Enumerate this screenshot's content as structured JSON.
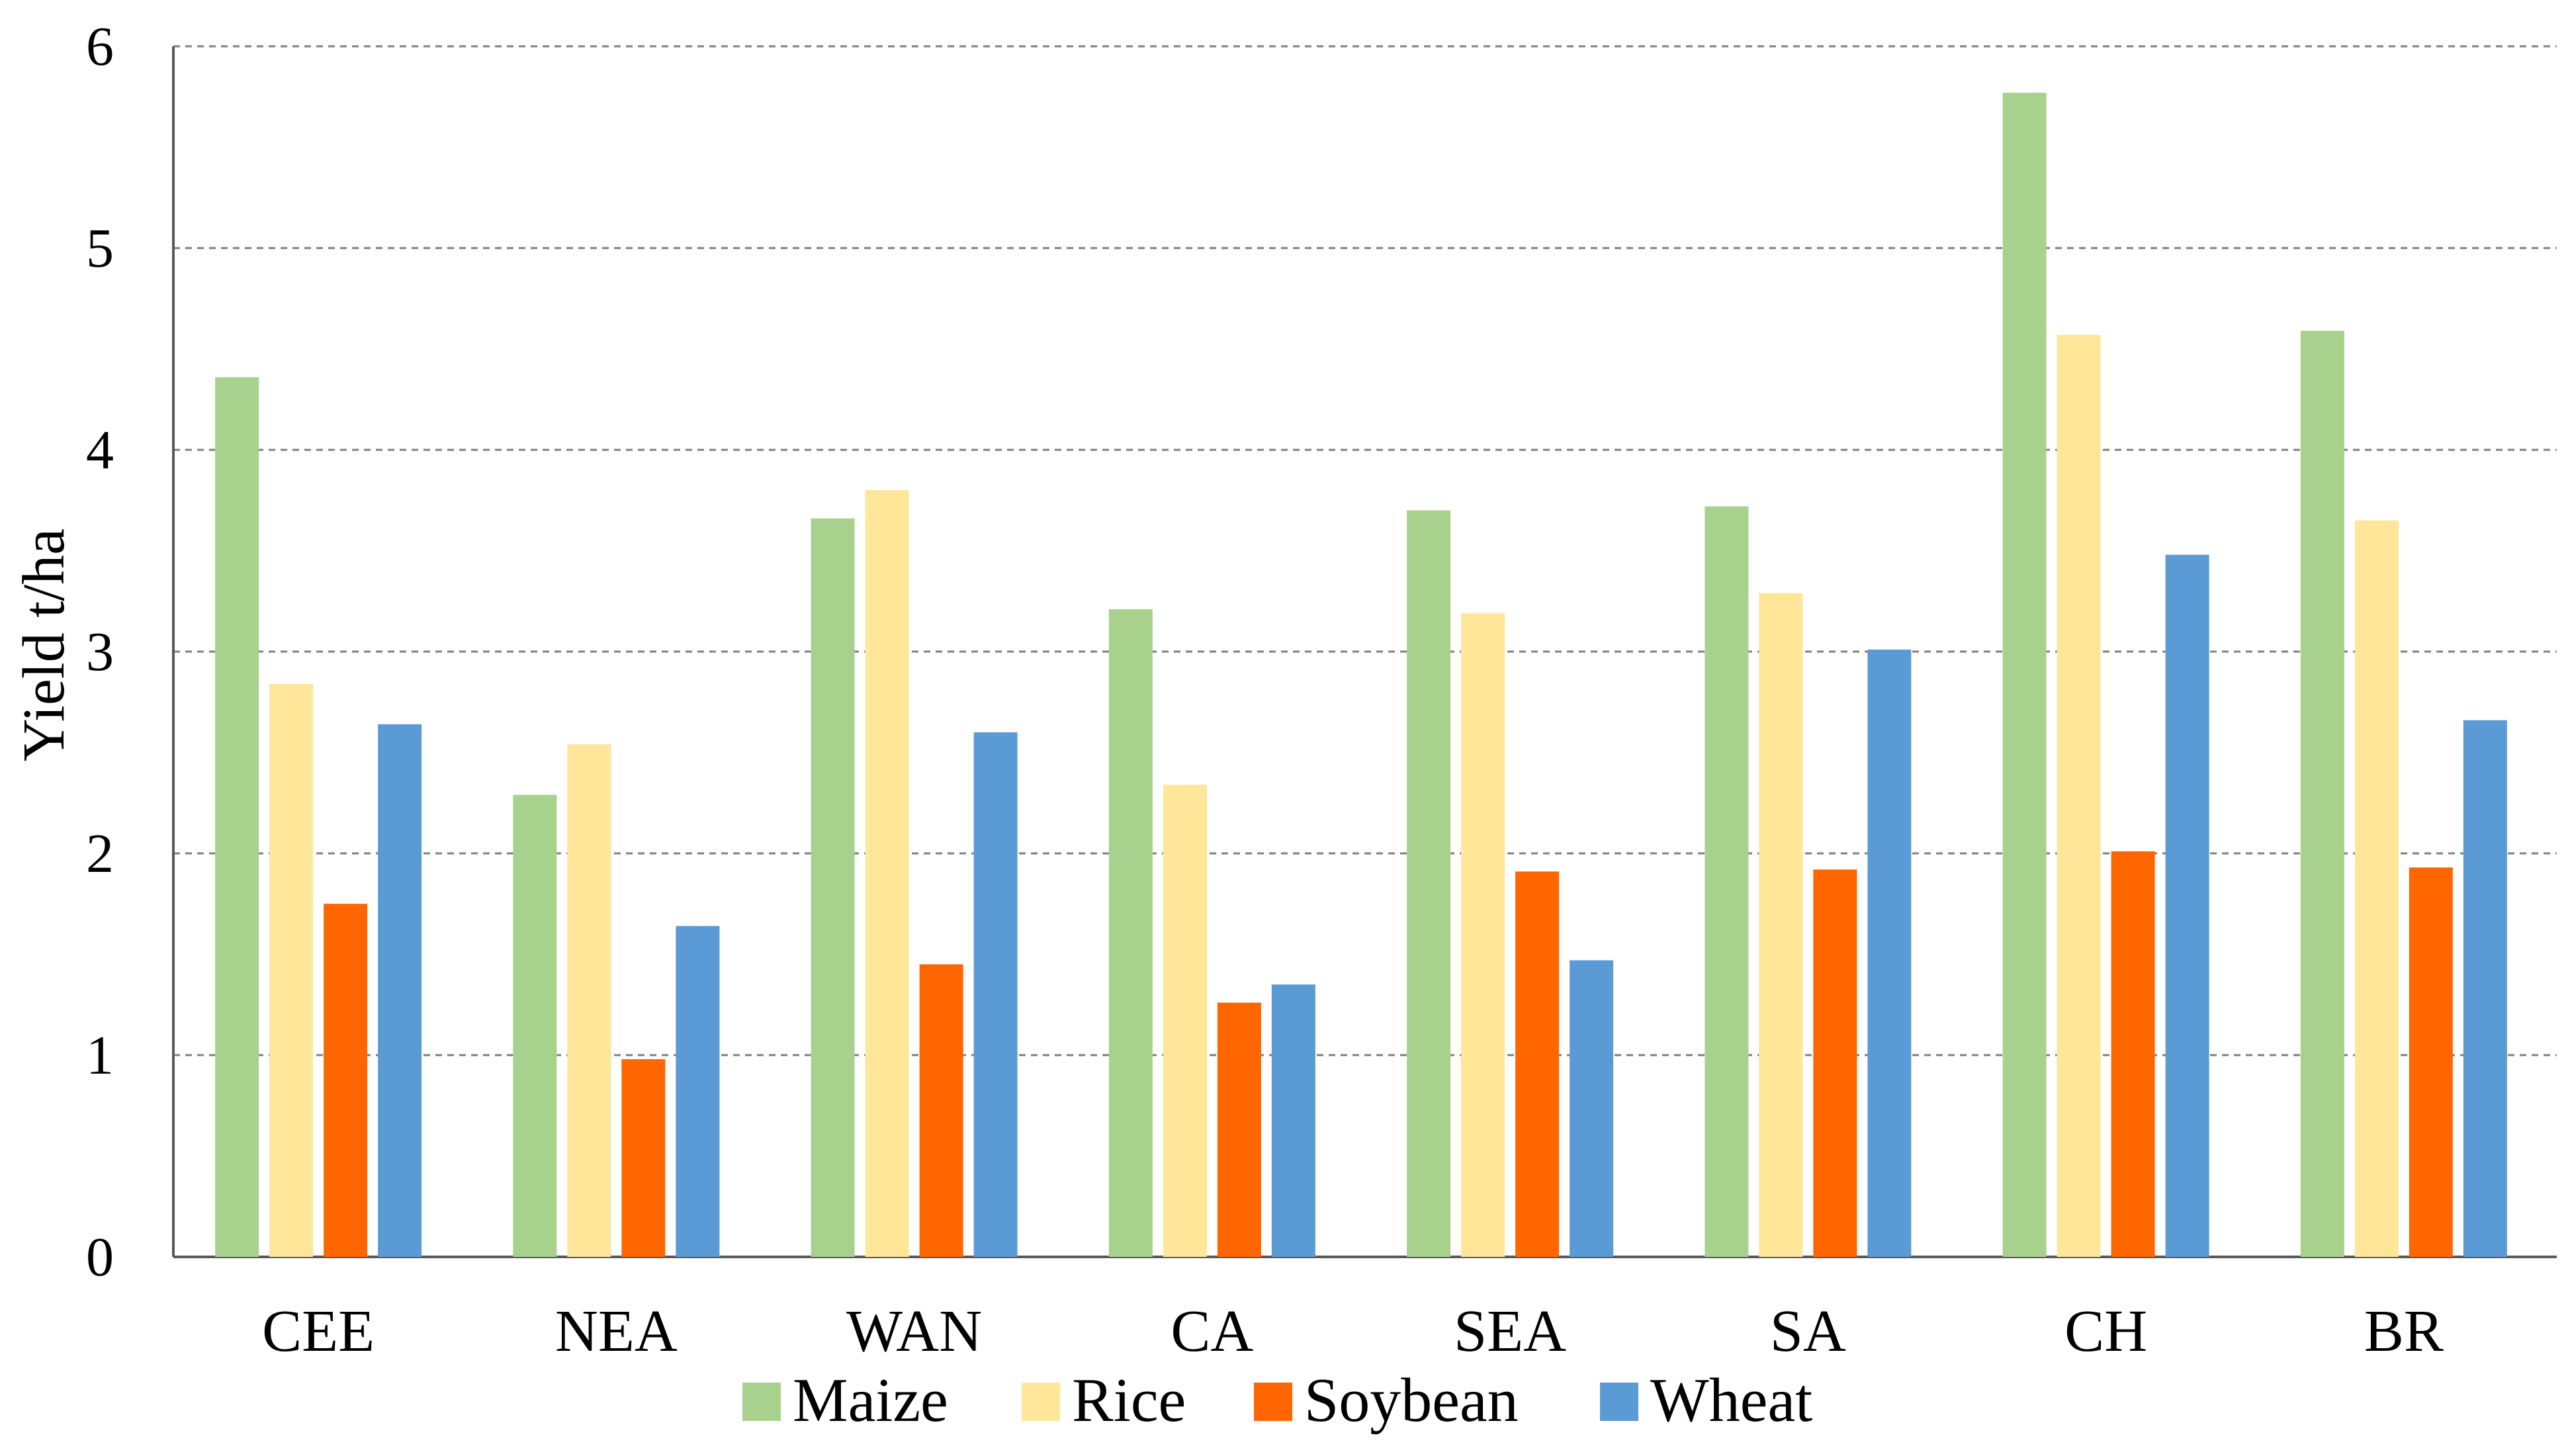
{
  "chart_data": {
    "type": "bar",
    "title": "",
    "xlabel": "",
    "ylabel": "Yield t/ha",
    "ylim": [
      0,
      6
    ],
    "yticks": [
      "0",
      "1",
      "2",
      "3",
      "4",
      "5",
      "6"
    ],
    "grid": true,
    "legend_position": "bottom",
    "categories": [
      "CEE",
      "NEA",
      "WAN",
      "CA",
      "SEA",
      "SA",
      "CH",
      "BR"
    ],
    "series": [
      {
        "name": "Maize",
        "color": "#a9d18e",
        "values": [
          4.36,
          2.29,
          3.66,
          3.21,
          3.7,
          3.72,
          5.77,
          4.59
        ]
      },
      {
        "name": "Rice",
        "color": "#ffe699",
        "values": [
          2.84,
          2.54,
          3.8,
          2.34,
          3.19,
          3.29,
          4.57,
          3.65
        ]
      },
      {
        "name": "Soybean",
        "color": "#ff6600",
        "values": [
          1.75,
          0.98,
          1.45,
          1.26,
          1.91,
          1.92,
          2.01,
          1.93
        ]
      },
      {
        "name": "Wheat",
        "color": "#5b9bd5",
        "values": [
          2.64,
          1.64,
          2.6,
          1.35,
          1.47,
          3.01,
          3.48,
          2.66
        ]
      }
    ]
  }
}
